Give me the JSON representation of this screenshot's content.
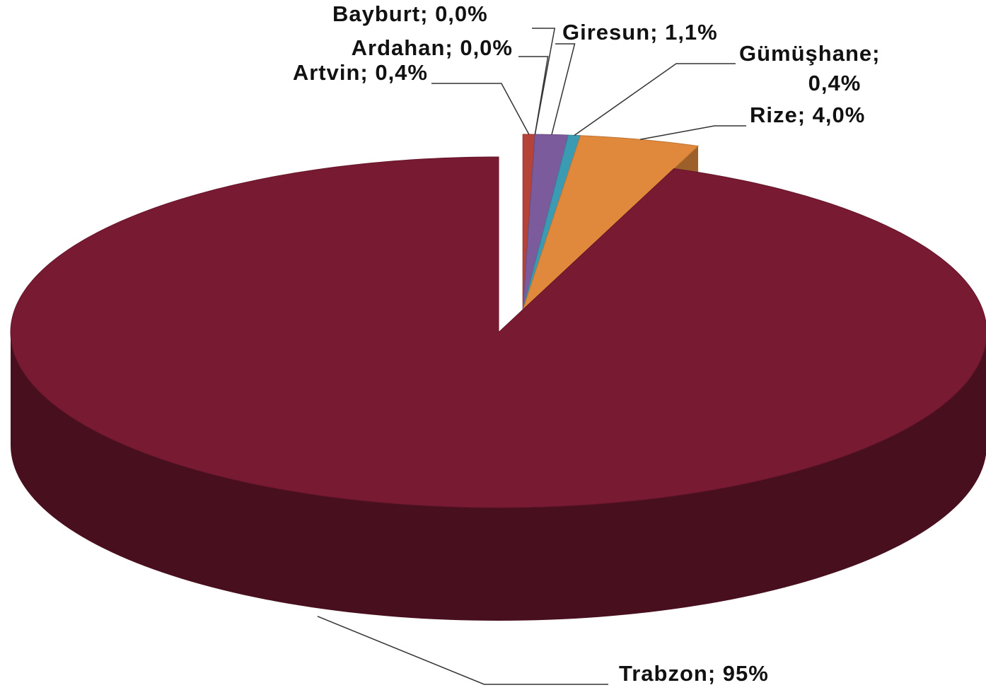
{
  "chart_data": {
    "type": "pie3d",
    "labels": [
      "Artvin; 0,4%",
      "Ardahan; 0,0%",
      "Bayburt; 0,0%",
      "Giresun; 1,1%",
      "Gümüşhane; 0,4%",
      "Rize; 4,0%",
      "Trabzon; 95%"
    ],
    "values": [
      0.4,
      0.0,
      0.0,
      1.1,
      0.4,
      4.0,
      95
    ],
    "colors": [
      "#b5433a",
      "#7d9a3c",
      "#4d3f80",
      "#7b5b9c",
      "#3b9bb3",
      "#e0893c",
      "#781a32"
    ]
  }
}
